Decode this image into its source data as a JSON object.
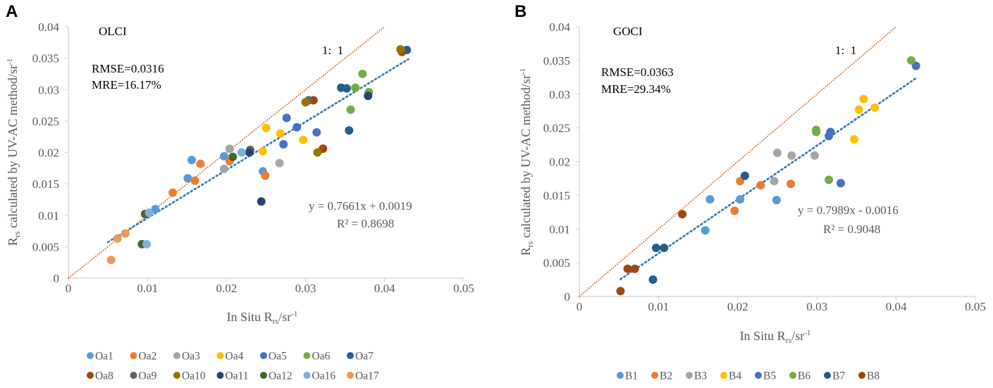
{
  "chart_data": [
    {
      "panel_label": "A",
      "type": "scatter",
      "sensor": "OLCI",
      "rmse": "RMSE=0.0316",
      "mre": "MRE=16.17%",
      "one_to_one_label": "1:  1",
      "equation": "y = 0.7661x + 0.0019",
      "r2": "R² = 0.8698",
      "trend": {
        "slope": 0.7661,
        "intercept": 0.0019,
        "x_range": [
          0.005,
          0.043
        ],
        "color": "#2E75B6"
      },
      "one_to_one": {
        "x_range": [
          0,
          0.04
        ],
        "color": "#C55A11"
      },
      "xlabel": {
        "prefix": "In Situ R",
        "sub": "rs",
        "suffix": "/sr",
        "sup": "-1"
      },
      "ylabel": {
        "prefix": "R",
        "sub": "rs",
        "suffix": " calculated by UV-AC method/sr",
        "sup": "-1"
      },
      "xlim": [
        0,
        0.05
      ],
      "ylim": [
        0,
        0.04
      ],
      "xticks": [
        "0",
        "0.01",
        "0.02",
        "0.03",
        "0.04",
        "0.05"
      ],
      "yticks": [
        "0",
        "0.005",
        "0.01",
        "0.015",
        "0.02",
        "0.025",
        "0.03",
        "0.035",
        "0.04"
      ],
      "grid": false,
      "legend_position": "bottom",
      "series": [
        {
          "name": "Oa1",
          "color": "#5B9BD5",
          "points": [
            [
              0.011,
              0.011
            ],
            [
              0.0151,
              0.0159
            ],
            [
              0.0156,
              0.0188
            ],
            [
              0.0197,
              0.0194
            ],
            [
              0.0246,
              0.017
            ]
          ]
        },
        {
          "name": "Oa2",
          "color": "#ED7D31",
          "points": [
            [
              0.0132,
              0.0136
            ],
            [
              0.016,
              0.0155
            ],
            [
              0.0167,
              0.0182
            ],
            [
              0.0204,
              0.0186
            ],
            [
              0.0249,
              0.0163
            ]
          ]
        },
        {
          "name": "Oa3",
          "color": "#A5A5A5",
          "points": [
            [
              0.0197,
              0.0174
            ],
            [
              0.0204,
              0.0206
            ],
            [
              0.0267,
              0.0183
            ]
          ]
        },
        {
          "name": "Oa4",
          "color": "#FFC000",
          "points": [
            [
              0.0246,
              0.0202
            ],
            [
              0.025,
              0.0239
            ],
            [
              0.0268,
              0.023
            ],
            [
              0.0297,
              0.022
            ]
          ]
        },
        {
          "name": "Oa5",
          "color": "#4472C4",
          "points": [
            [
              0.0272,
              0.0213
            ],
            [
              0.0276,
              0.0255
            ],
            [
              0.0289,
              0.024
            ],
            [
              0.0314,
              0.0232
            ]
          ]
        },
        {
          "name": "Oa6",
          "color": "#70AD47",
          "points": [
            [
              0.0357,
              0.0268
            ],
            [
              0.0363,
              0.0303
            ],
            [
              0.0372,
              0.0325
            ],
            [
              0.038,
              0.0296
            ]
          ]
        },
        {
          "name": "Oa7",
          "color": "#255E91",
          "points": [
            [
              0.0345,
              0.0303
            ],
            [
              0.0352,
              0.0302
            ],
            [
              0.0355,
              0.0235
            ],
            [
              0.0428,
              0.0363
            ]
          ]
        },
        {
          "name": "Oa8",
          "color": "#9E480E",
          "points": [
            [
              0.031,
              0.0283
            ],
            [
              0.0322,
              0.0206
            ],
            [
              0.0422,
              0.036
            ]
          ]
        },
        {
          "name": "Oa9",
          "color": "#636363",
          "points": [
            [
              0.0304,
              0.0283
            ],
            [
              0.023,
              0.0204
            ]
          ]
        },
        {
          "name": "Oa10",
          "color": "#997300",
          "points": [
            [
              0.03,
              0.028
            ],
            [
              0.0315,
              0.02
            ],
            [
              0.042,
              0.0364
            ]
          ]
        },
        {
          "name": "Oa11",
          "color": "#264478",
          "points": [
            [
              0.0229,
              0.02
            ],
            [
              0.0244,
              0.0122
            ],
            [
              0.0379,
              0.029
            ]
          ]
        },
        {
          "name": "Oa12",
          "color": "#43682B",
          "points": [
            [
              0.0093,
              0.0054
            ],
            [
              0.0097,
              0.0102
            ],
            [
              0.0208,
              0.0193
            ]
          ]
        },
        {
          "name": "Oa16",
          "color": "#7CAFDD",
          "points": [
            [
              0.0099,
              0.0054
            ],
            [
              0.0102,
              0.0104
            ],
            [
              0.0219,
              0.02
            ]
          ]
        },
        {
          "name": "Oa17",
          "color": "#F1975A",
          "points": [
            [
              0.0054,
              0.0029
            ],
            [
              0.0062,
              0.0063
            ],
            [
              0.0072,
              0.0071
            ]
          ]
        }
      ]
    },
    {
      "panel_label": "B",
      "type": "scatter",
      "sensor": "GOCI",
      "rmse": "RMSE=0.0363",
      "mre": "MRE=29.34%",
      "one_to_one_label": "1:  1",
      "equation": "y = 0.7989x - 0.0016",
      "r2": "R² = 0.9048",
      "trend": {
        "slope": 0.7989,
        "intercept": -0.0016,
        "x_range": [
          0.0052,
          0.0425
        ],
        "color": "#2E75B6"
      },
      "one_to_one": {
        "x_range": [
          0,
          0.04
        ],
        "color": "#C55A11"
      },
      "xlabel": {
        "prefix": "In Situ R",
        "sub": "rs",
        "suffix": "/sr",
        "sup": "-1"
      },
      "ylabel": {
        "prefix": "R",
        "sub": "rs",
        "suffix": " calculated by UV-AC method/sr",
        "sup": "-1"
      },
      "xlim": [
        0,
        0.05
      ],
      "ylim": [
        0,
        0.04
      ],
      "xticks": [
        "0",
        "0.01",
        "0.02",
        "0.03",
        "0.04",
        "0.05"
      ],
      "yticks": [
        "0",
        "0.005",
        "0.01",
        "0.015",
        "0.02",
        "0.025",
        "0.03",
        "0.035",
        "0.04"
      ],
      "grid": false,
      "legend_position": "bottom",
      "series": [
        {
          "name": "B1",
          "color": "#5B9BD5",
          "points": [
            [
              0.0159,
              0.0098
            ],
            [
              0.0165,
              0.0144
            ],
            [
              0.0203,
              0.0144
            ],
            [
              0.0249,
              0.0143
            ]
          ]
        },
        {
          "name": "B2",
          "color": "#ED7D31",
          "points": [
            [
              0.0196,
              0.0127
            ],
            [
              0.0203,
              0.0171
            ],
            [
              0.0229,
              0.0165
            ],
            [
              0.0267,
              0.0167
            ]
          ]
        },
        {
          "name": "B3",
          "color": "#A5A5A5",
          "points": [
            [
              0.0246,
              0.0171
            ],
            [
              0.025,
              0.0213
            ],
            [
              0.0268,
              0.0209
            ],
            [
              0.0297,
              0.0209
            ]
          ]
        },
        {
          "name": "B4",
          "color": "#FFC000",
          "points": [
            [
              0.0347,
              0.0233
            ],
            [
              0.0353,
              0.0277
            ],
            [
              0.0359,
              0.0293
            ],
            [
              0.0373,
              0.028
            ]
          ]
        },
        {
          "name": "B5",
          "color": "#4472C4",
          "points": [
            [
              0.0315,
              0.0238
            ],
            [
              0.0317,
              0.0244
            ],
            [
              0.033,
              0.0168
            ],
            [
              0.0425,
              0.0342
            ]
          ]
        },
        {
          "name": "B6",
          "color": "#70AD47",
          "points": [
            [
              0.0299,
              0.0247
            ],
            [
              0.0299,
              0.0244
            ],
            [
              0.0315,
              0.0173
            ],
            [
              0.0419,
              0.035
            ]
          ]
        },
        {
          "name": "B7",
          "color": "#255E91",
          "points": [
            [
              0.0093,
              0.0025
            ],
            [
              0.0097,
              0.0072
            ],
            [
              0.0107,
              0.0072
            ],
            [
              0.0209,
              0.0179
            ]
          ]
        },
        {
          "name": "B8",
          "color": "#9E480E",
          "points": [
            [
              0.0052,
              0.0008
            ],
            [
              0.0061,
              0.0041
            ],
            [
              0.007,
              0.0041
            ],
            [
              0.013,
              0.0122
            ]
          ]
        }
      ]
    }
  ]
}
